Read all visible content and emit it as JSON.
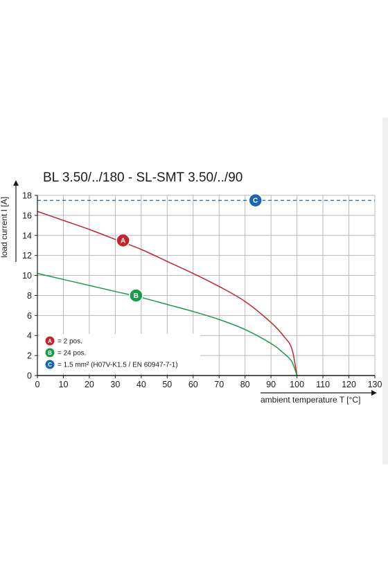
{
  "chart_data": {
    "type": "line",
    "title": "BL 3.50/../180 - SL-SMT 3.50/../90",
    "xlabel": "ambient temperature T [°C]",
    "ylabel": "load current I [A]",
    "xlim": [
      0,
      130
    ],
    "ylim": [
      0,
      18
    ],
    "x_ticks": [
      0,
      10,
      20,
      30,
      40,
      50,
      60,
      70,
      80,
      90,
      100,
      110,
      120,
      130
    ],
    "y_ticks": [
      0,
      2,
      4,
      6,
      8,
      10,
      12,
      14,
      16,
      18
    ],
    "grid": true,
    "legend_placement": "bottom-left",
    "series": [
      {
        "name": "= 2 pos.",
        "badge": "A",
        "color": "#c0272d",
        "style": "solid",
        "x": [
          0,
          10,
          20,
          30,
          40,
          50,
          60,
          70,
          80,
          90,
          95,
          98,
          100
        ],
        "y": [
          16.4,
          15.5,
          14.6,
          13.6,
          12.6,
          11.4,
          10.2,
          8.9,
          7.4,
          5.3,
          3.9,
          2.7,
          0
        ]
      },
      {
        "name": "= 24 pos.",
        "badge": "B",
        "color": "#1a9a4a",
        "style": "solid",
        "x": [
          0,
          10,
          20,
          30,
          40,
          50,
          60,
          70,
          80,
          90,
          95,
          98,
          100
        ],
        "y": [
          10.2,
          9.6,
          9.0,
          8.4,
          7.8,
          7.1,
          6.4,
          5.6,
          4.6,
          3.2,
          2.2,
          1.4,
          0
        ]
      },
      {
        "name": "= 1.5 mm² (H07V-K1.5 / EN 60947-7-1)",
        "badge": "C",
        "color": "#1a66b3",
        "style": "dashed",
        "x": [
          0,
          130
        ],
        "y": [
          17.5,
          17.5
        ]
      }
    ],
    "markers": [
      {
        "badge": "A",
        "x": 33,
        "y": 13.5,
        "color": "#c0272d"
      },
      {
        "badge": "B",
        "x": 38,
        "y": 8.0,
        "color": "#1a9a4a"
      },
      {
        "badge": "C",
        "x": 84,
        "y": 17.5,
        "color": "#1a66b3"
      }
    ]
  },
  "colors": {
    "grid": "#b8b8b8",
    "axis": "#1a1a1a",
    "legend_bg": "#ffffff"
  },
  "layout_hints": {
    "right_edge_shading": true
  }
}
